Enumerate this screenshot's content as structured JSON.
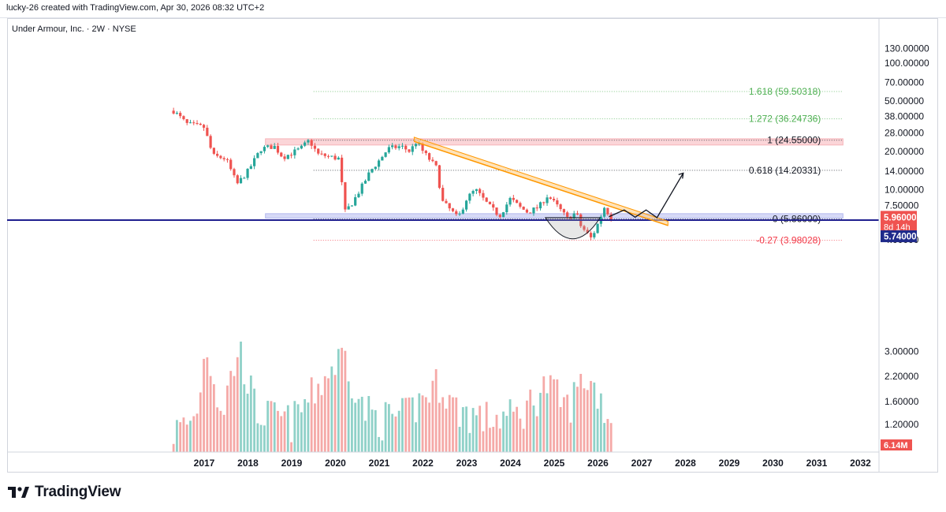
{
  "header": {
    "attribution": "lucky-26 created with TradingView.com, Apr 30, 2026 08:32 UTC+2"
  },
  "footer": {
    "brand": "TradingView"
  },
  "colors": {
    "up": "#26a69a",
    "down": "#ef5350",
    "resistance": "#f7b3b8",
    "support": "#b4b9ef",
    "trendline": "#ff9800",
    "price_badge": "#ef5350",
    "line_badge": "#1f2a8a",
    "baseline": "#1f1f8f"
  },
  "chart_data": {
    "type": "candlestick",
    "title": "Under Armour, Inc. · 2W · NYSE",
    "y_scale": "log",
    "x_ticks": [
      "2017",
      "2018",
      "2019",
      "2020",
      "2021",
      "2022",
      "2023",
      "2024",
      "2025",
      "2026",
      "2027",
      "2028",
      "2029",
      "2030",
      "2031",
      "2032"
    ],
    "y_ticks": [
      "130.00000",
      "100.00000",
      "70.00000",
      "50.00000",
      "38.00000",
      "28.00000",
      "20.00000",
      "14.00000",
      "10.00000",
      "7.50000",
      "5.74000",
      "4.00000",
      "3.00000",
      "2.20000",
      "1.60000",
      "1.20000"
    ],
    "price_label": {
      "value": "5.96000",
      "countdown": "8d 14h"
    },
    "line_label": "5.74000",
    "volume_label": "6.14M",
    "fib_levels": [
      {
        "label": "1.618 (59.50318)",
        "value": 59.50318,
        "color": "#4caf50"
      },
      {
        "label": "1.272 (36.24736)",
        "value": 36.24736,
        "color": "#4caf50"
      },
      {
        "label": "1 (24.55000)",
        "value": 24.55,
        "color": "#131722"
      },
      {
        "label": "0.618 (14.20331)",
        "value": 14.20331,
        "color": "#131722"
      },
      {
        "label": "0 (5.86000)",
        "value": 5.86,
        "color": "#131722"
      },
      {
        "label": "-0.27 (3.98028)",
        "value": 3.98028,
        "color": "#f23645"
      }
    ],
    "zones": [
      {
        "name": "resistance",
        "low": 22.5,
        "high": 25.2,
        "from": 2018.4,
        "to": 2031.6
      },
      {
        "name": "support",
        "low": 5.95,
        "high": 6.45,
        "from": 2018.4,
        "to": 2031.6
      }
    ],
    "horizontal_line": 5.74,
    "trend_channel": {
      "start": [
        2021.8,
        24.0
      ],
      "end": [
        2027.6,
        5.2
      ],
      "width_pct": 8
    },
    "projection_path": [
      [
        2026.25,
        6.1
      ],
      [
        2026.6,
        6.9
      ],
      [
        2026.85,
        6.05
      ],
      [
        2027.1,
        6.9
      ],
      [
        2027.35,
        6.0
      ],
      [
        2027.95,
        13.5
      ]
    ],
    "cup_arc": {
      "from": 2024.8,
      "to": 2026.05,
      "top": 6.0,
      "bottom": 4.0
    },
    "ohlc_waypoints": [
      [
        2016.3,
        42
      ],
      [
        2016.6,
        33
      ],
      [
        2017.0,
        31
      ],
      [
        2017.2,
        18.5
      ],
      [
        2017.5,
        17.5
      ],
      [
        2017.75,
        11
      ],
      [
        2018.0,
        14
      ],
      [
        2018.3,
        21
      ],
      [
        2018.6,
        22
      ],
      [
        2018.8,
        18
      ],
      [
        2019.2,
        21
      ],
      [
        2019.4,
        24.5
      ],
      [
        2019.6,
        19
      ],
      [
        2020.1,
        17.5
      ],
      [
        2020.2,
        6.5
      ],
      [
        2020.4,
        8
      ],
      [
        2020.6,
        10.5
      ],
      [
        2020.8,
        14
      ],
      [
        2021.0,
        17
      ],
      [
        2021.2,
        21
      ],
      [
        2021.5,
        22
      ],
      [
        2021.7,
        20
      ],
      [
        2021.85,
        24
      ],
      [
        2022.0,
        20
      ],
      [
        2022.3,
        15
      ],
      [
        2022.45,
        8
      ],
      [
        2022.7,
        6.5
      ],
      [
        2022.8,
        5.9
      ],
      [
        2023.0,
        8.5
      ],
      [
        2023.2,
        10
      ],
      [
        2023.5,
        7.5
      ],
      [
        2023.75,
        6.2
      ],
      [
        2024.0,
        8.5
      ],
      [
        2024.2,
        7.3
      ],
      [
        2024.4,
        6.6
      ],
      [
        2024.65,
        7.3
      ],
      [
        2024.85,
        9
      ],
      [
        2025.1,
        7.2
      ],
      [
        2025.3,
        5.9
      ],
      [
        2025.5,
        6.6
      ],
      [
        2025.6,
        5.2
      ],
      [
        2025.85,
        4.1
      ],
      [
        2026.0,
        5.4
      ],
      [
        2026.15,
        7.3
      ],
      [
        2026.3,
        5.96
      ]
    ],
    "volume_waypoints": [
      [
        2016.3,
        1.1
      ],
      [
        2016.8,
        1.3
      ],
      [
        2017.05,
        3.3
      ],
      [
        2017.4,
        1.4
      ],
      [
        2017.8,
        3.2
      ],
      [
        2018.2,
        1.4
      ],
      [
        2019.0,
        1.25
      ],
      [
        2020.2,
        3.0
      ],
      [
        2020.6,
        1.5
      ],
      [
        2021.0,
        1.3
      ],
      [
        2021.6,
        1.35
      ],
      [
        2022.4,
        2.1
      ],
      [
        2022.7,
        1.5
      ],
      [
        2023.4,
        1.3
      ],
      [
        2024.2,
        1.35
      ],
      [
        2024.8,
        2.0
      ],
      [
        2025.3,
        1.5
      ],
      [
        2025.7,
        2.2
      ],
      [
        2026.0,
        1.8
      ],
      [
        2026.3,
        1.25
      ]
    ]
  }
}
